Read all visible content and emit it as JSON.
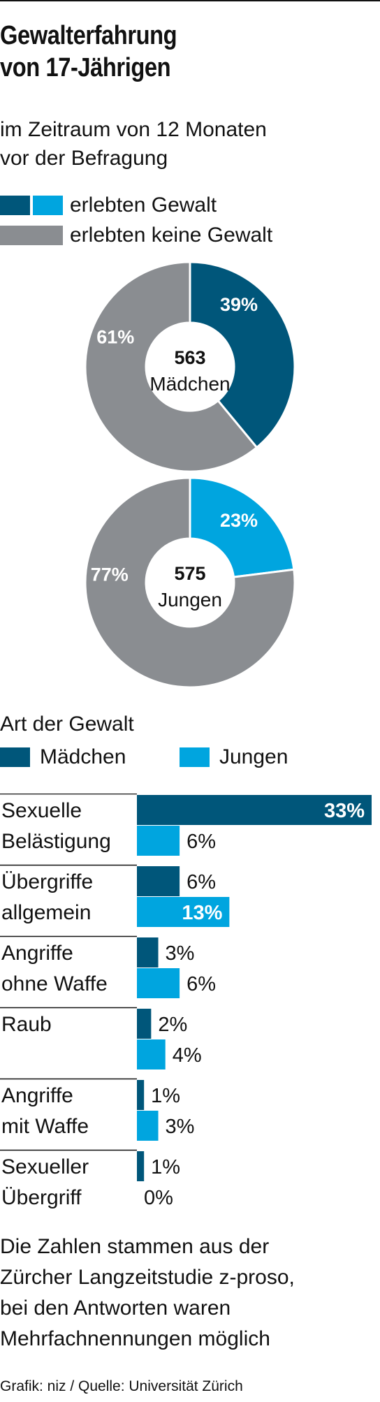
{
  "title_lines": [
    "Gewalterfahrung",
    "von 17-Jährigen"
  ],
  "subtitle_lines": [
    "im Zeitraum von 12 Monaten",
    "vor der Befragung"
  ],
  "legend_top": [
    {
      "label": "erlebten Gewalt",
      "colors": [
        "#00567a",
        "#00a5df"
      ]
    },
    {
      "label": "erlebten keine Gewalt",
      "colors": [
        "#8a8d91"
      ]
    }
  ],
  "colors": {
    "maedchen": "#00567a",
    "jungen": "#00a5df",
    "keine": "#8a8d91",
    "text": "#111111",
    "rule": "#111111"
  },
  "section_head": "Art der Gewalt",
  "legend_bars": [
    {
      "label": "Mädchen",
      "color": "#00567a"
    },
    {
      "label": "Jungen",
      "color": "#00a5df"
    }
  ],
  "note_lines": [
    "Die Zahlen stammen aus der",
    "Zürcher Langzeitstudie z-proso,",
    "bei den Antworten waren",
    "Mehrfachnennungen möglich"
  ],
  "credit": "Grafik: niz / Quelle: Universität Zürich",
  "chart_data": [
    {
      "type": "pie",
      "center_count": "563",
      "center_label": "Mädchen",
      "slices": [
        {
          "name": "erlebten Gewalt",
          "value": 39,
          "label": "39%",
          "color": "#00567a"
        },
        {
          "name": "erlebten keine Gewalt",
          "value": 61,
          "label": "61%",
          "color": "#8a8d91"
        }
      ]
    },
    {
      "type": "pie",
      "center_count": "575",
      "center_label": "Jungen",
      "slices": [
        {
          "name": "erlebten Gewalt",
          "value": 23,
          "label": "23%",
          "color": "#00a5df"
        },
        {
          "name": "erlebten keine Gewalt",
          "value": 77,
          "label": "77%",
          "color": "#8a8d91"
        }
      ]
    },
    {
      "type": "bar",
      "title": "Art der Gewalt",
      "categories": [
        [
          "Sexuelle",
          "Belästigung"
        ],
        [
          "Übergriffe",
          "allgemein"
        ],
        [
          "Angriffe",
          "ohne Waffe"
        ],
        [
          "Raub"
        ],
        [
          "Angriffe",
          "mit Waffe"
        ],
        [
          "Sexueller",
          "Übergriff"
        ]
      ],
      "series": [
        {
          "name": "Mädchen",
          "color": "#00567a",
          "values": [
            33,
            6,
            3,
            2,
            1,
            1
          ],
          "labels": [
            "33%",
            "6%",
            "3%",
            "2%",
            "1%",
            "1%"
          ]
        },
        {
          "name": "Jungen",
          "color": "#00a5df",
          "values": [
            6,
            13,
            6,
            4,
            3,
            0
          ],
          "labels": [
            "6%",
            "13%",
            "6%",
            "4%",
            "3%",
            "0%"
          ]
        }
      ],
      "xlim": [
        0,
        33
      ]
    }
  ]
}
